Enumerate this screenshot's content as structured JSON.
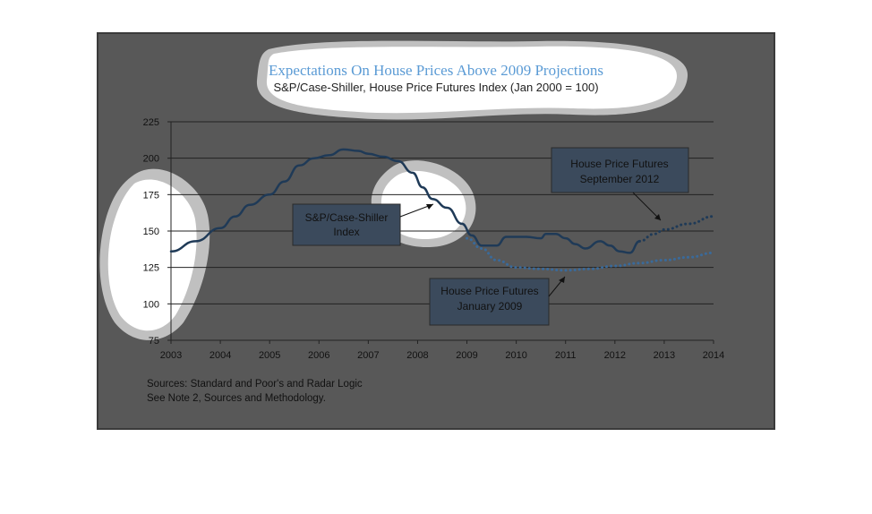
{
  "chart_data": {
    "type": "line",
    "title": "Expectations On House Prices Above 2009 Projections",
    "subtitle": "S&P/Case-Shiller, House Price Futures Index (Jan 2000 = 100)",
    "xlabel": "",
    "ylabel": "",
    "xlim": [
      2003,
      2014
    ],
    "ylim": [
      75,
      225
    ],
    "x_ticks": [
      "2003",
      "2004",
      "2005",
      "2006",
      "2007",
      "2008",
      "2009",
      "2010",
      "2011",
      "2012",
      "2013",
      "2014"
    ],
    "y_ticks": [
      "75",
      "100",
      "125",
      "150",
      "175",
      "200",
      "225"
    ],
    "grid": "horizontal",
    "series": [
      {
        "name": "S&P/Case-Shiller Index",
        "style": "solid",
        "color": "#1f3a57",
        "points": [
          [
            2003.0,
            136
          ],
          [
            2003.5,
            143
          ],
          [
            2004.0,
            152
          ],
          [
            2004.3,
            160
          ],
          [
            2004.6,
            168
          ],
          [
            2005.0,
            175
          ],
          [
            2005.3,
            184
          ],
          [
            2005.6,
            195
          ],
          [
            2005.9,
            200
          ],
          [
            2006.2,
            202
          ],
          [
            2006.5,
            206
          ],
          [
            2006.8,
            205
          ],
          [
            2007.0,
            203
          ],
          [
            2007.3,
            201
          ],
          [
            2007.6,
            198
          ],
          [
            2007.9,
            190
          ],
          [
            2008.1,
            180
          ],
          [
            2008.3,
            172
          ],
          [
            2008.6,
            166
          ],
          [
            2008.9,
            155
          ],
          [
            2009.1,
            147
          ],
          [
            2009.3,
            140
          ],
          [
            2009.6,
            140
          ],
          [
            2009.8,
            146
          ],
          [
            2010.2,
            146
          ],
          [
            2010.5,
            145
          ],
          [
            2010.6,
            148
          ],
          [
            2010.8,
            148
          ],
          [
            2011.0,
            145
          ],
          [
            2011.2,
            141
          ],
          [
            2011.4,
            138
          ],
          [
            2011.7,
            143
          ],
          [
            2011.9,
            140
          ],
          [
            2012.1,
            136
          ],
          [
            2012.3,
            135
          ],
          [
            2012.5,
            143
          ]
        ]
      },
      {
        "name": "House Price Futures September 2012",
        "style": "dotted",
        "color": "#1f3a57",
        "points": [
          [
            2012.5,
            143
          ],
          [
            2012.8,
            148
          ],
          [
            2013.0,
            151
          ],
          [
            2013.5,
            155
          ],
          [
            2014.0,
            160
          ]
        ]
      },
      {
        "name": "House Price Futures January 2009",
        "style": "dotted",
        "color": "#3a6a9a",
        "points": [
          [
            2009.0,
            145
          ],
          [
            2009.3,
            138
          ],
          [
            2009.6,
            130
          ],
          [
            2010.0,
            125
          ],
          [
            2010.5,
            124
          ],
          [
            2011.0,
            123
          ],
          [
            2011.5,
            124
          ],
          [
            2012.0,
            126
          ],
          [
            2012.5,
            128
          ],
          [
            2013.0,
            130
          ],
          [
            2013.5,
            132
          ],
          [
            2014.0,
            135
          ]
        ]
      }
    ],
    "annotations": [
      {
        "line1": "S&P/Case-Shiller",
        "line2": "Index"
      },
      {
        "line1": "House Price Futures",
        "line2": "September 2012"
      },
      {
        "line1": "House Price Futures",
        "line2": "January 2009"
      }
    ],
    "sources": [
      "Sources:  Standard and Poor's and Radar Logic",
      "See Note 2, Sources and Methodology."
    ]
  }
}
